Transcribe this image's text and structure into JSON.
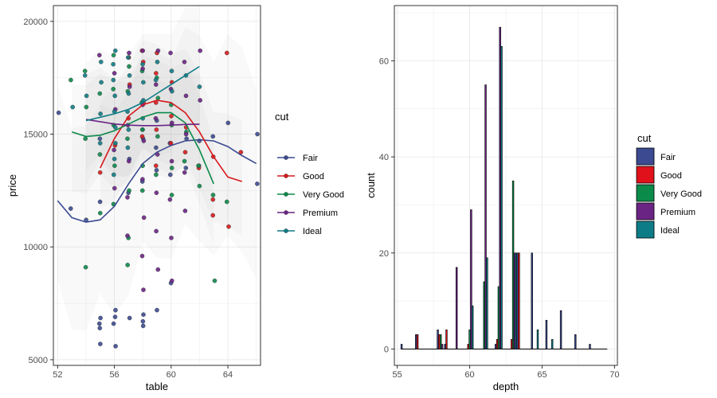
{
  "chart_data": [
    {
      "type": "scatter",
      "title": "",
      "xlabel": "table",
      "ylabel": "price",
      "xlim": [
        51.7,
        66.3
      ],
      "ylim": [
        4750,
        20700
      ],
      "xticks": [
        52,
        56,
        60,
        64
      ],
      "yticks": [
        5000,
        10000,
        15000,
        20000
      ],
      "grid": true,
      "legend": {
        "title": "cut",
        "position": "right"
      },
      "series": [
        {
          "name": "Fair",
          "color": "#3b4a91",
          "points": [
            [
              52,
              15950
            ],
            [
              53,
              11700
            ],
            [
              54,
              11200
            ],
            [
              55,
              14800
            ],
            [
              55,
              12000
            ],
            [
              55,
              6850
            ],
            [
              55,
              6600
            ],
            [
              55,
              6400
            ],
            [
              55,
              5700
            ],
            [
              56,
              7200
            ],
            [
              56,
              6900
            ],
            [
              56,
              6600
            ],
            [
              56,
              5600
            ],
            [
              57,
              13900
            ],
            [
              57,
              12400
            ],
            [
              57,
              6850
            ],
            [
              58,
              15200
            ],
            [
              58,
              14800
            ],
            [
              58,
              12900
            ],
            [
              58,
              7000
            ],
            [
              58,
              6700
            ],
            [
              58,
              6500
            ],
            [
              59,
              15600
            ],
            [
              59,
              14400
            ],
            [
              59,
              13400
            ],
            [
              59,
              7200
            ],
            [
              60,
              14600
            ],
            [
              60,
              13200
            ],
            [
              60,
              8400
            ],
            [
              61,
              14800
            ],
            [
              61,
              13500
            ],
            [
              62,
              13600
            ],
            [
              62,
              14700
            ],
            [
              63,
              14900
            ],
            [
              64,
              15500
            ],
            [
              66,
              15000
            ],
            [
              66,
              12800
            ]
          ],
          "smooth": [
            [
              52,
              12050
            ],
            [
              53,
              11300
            ],
            [
              54,
              11100
            ],
            [
              55,
              11200
            ],
            [
              56,
              11800
            ],
            [
              57,
              12800
            ],
            [
              58,
              13700
            ],
            [
              59,
              14200
            ],
            [
              60,
              14500
            ],
            [
              61,
              14700
            ],
            [
              62,
              14750
            ],
            [
              63,
              14700
            ],
            [
              64,
              14450
            ],
            [
              65,
              14050
            ],
            [
              66,
              13700
            ]
          ]
        },
        {
          "name": "Good",
          "color": "#d7191c",
          "points": [
            [
              55,
              13300
            ],
            [
              56,
              14500
            ],
            [
              57,
              18400
            ],
            [
              57,
              17200
            ],
            [
              57,
              15700
            ],
            [
              58,
              18700
            ],
            [
              58,
              18200
            ],
            [
              58,
              16400
            ],
            [
              58,
              14900
            ],
            [
              59,
              18600
            ],
            [
              59,
              17700
            ],
            [
              59,
              16400
            ],
            [
              59,
              15200
            ],
            [
              59,
              13600
            ],
            [
              60,
              17300
            ],
            [
              60,
              15800
            ],
            [
              60,
              14600
            ],
            [
              61,
              15300
            ],
            [
              61,
              14200
            ],
            [
              62,
              13500
            ],
            [
              63,
              14000
            ],
            [
              63,
              12100
            ],
            [
              63,
              11400
            ],
            [
              64,
              18600
            ],
            [
              64,
              10900
            ],
            [
              65,
              14200
            ]
          ],
          "smooth": [
            [
              55,
              13500
            ],
            [
              56,
              14800
            ],
            [
              57,
              15800
            ],
            [
              58,
              16300
            ],
            [
              59,
              16500
            ],
            [
              60,
              16400
            ],
            [
              61,
              15950
            ],
            [
              62,
              15100
            ],
            [
              63,
              14000
            ],
            [
              64,
              13100
            ],
            [
              65,
              12900
            ]
          ]
        },
        {
          "name": "Very Good",
          "color": "#0b8a4a",
          "points": [
            [
              53,
              17400
            ],
            [
              54,
              17800
            ],
            [
              54,
              16200
            ],
            [
              54,
              14800
            ],
            [
              54,
              9100
            ],
            [
              55,
              16800
            ],
            [
              55,
              14100
            ],
            [
              55,
              11500
            ],
            [
              56,
              18500
            ],
            [
              56,
              17000
            ],
            [
              56,
              15400
            ],
            [
              56,
              13600
            ],
            [
              56,
              11900
            ],
            [
              57,
              18000
            ],
            [
              57,
              16900
            ],
            [
              57,
              14800
            ],
            [
              57,
              12500
            ],
            [
              57,
              10400
            ],
            [
              57,
              9200
            ],
            [
              58,
              17800
            ],
            [
              58,
              16400
            ],
            [
              58,
              15200
            ],
            [
              58,
              13600
            ],
            [
              58,
              12500
            ],
            [
              59,
              17500
            ],
            [
              59,
              16600
            ],
            [
              59,
              14900
            ],
            [
              59,
              13200
            ],
            [
              60,
              16300
            ],
            [
              60,
              15400
            ],
            [
              60,
              13500
            ],
            [
              60,
              12300
            ],
            [
              61,
              15100
            ],
            [
              61,
              13800
            ],
            [
              62,
              13600
            ],
            [
              62,
              12700
            ],
            [
              63,
              12300
            ],
            [
              63,
              8500
            ],
            [
              64,
              12000
            ]
          ],
          "smooth": [
            [
              53,
              15100
            ],
            [
              54,
              14900
            ],
            [
              55,
              14950
            ],
            [
              56,
              15150
            ],
            [
              57,
              15450
            ],
            [
              58,
              15750
            ],
            [
              59,
              15950
            ],
            [
              60,
              15950
            ],
            [
              61,
              15500
            ],
            [
              62,
              14300
            ],
            [
              63,
              12800
            ]
          ]
        },
        {
          "name": "Premium",
          "color": "#6a2484",
          "points": [
            [
              55,
              18500
            ],
            [
              56,
              17700
            ],
            [
              56,
              16100
            ],
            [
              56,
              14300
            ],
            [
              56,
              12600
            ],
            [
              57,
              18600
            ],
            [
              57,
              17100
            ],
            [
              57,
              15400
            ],
            [
              57,
              13800
            ],
            [
              57,
              12200
            ],
            [
              57,
              10500
            ],
            [
              58,
              18700
            ],
            [
              58,
              17900
            ],
            [
              58,
              16300
            ],
            [
              58,
              14700
            ],
            [
              58,
              13000
            ],
            [
              58,
              11300
            ],
            [
              58,
              9600
            ],
            [
              58,
              8100
            ],
            [
              59,
              18700
            ],
            [
              59,
              17200
            ],
            [
              59,
              15700
            ],
            [
              59,
              14100
            ],
            [
              59,
              12400
            ],
            [
              59,
              10700
            ],
            [
              59,
              9000
            ],
            [
              60,
              18600
            ],
            [
              60,
              17000
            ],
            [
              60,
              15500
            ],
            [
              60,
              13800
            ],
            [
              60,
              12100
            ],
            [
              60,
              10400
            ],
            [
              60,
              8500
            ],
            [
              61,
              18200
            ],
            [
              61,
              16700
            ],
            [
              61,
              15000
            ],
            [
              61,
              13300
            ],
            [
              61,
              11600
            ],
            [
              62,
              18700
            ],
            [
              62,
              16500
            ]
          ],
          "smooth": [
            [
              54,
              15650
            ],
            [
              55,
              15550
            ],
            [
              56,
              15450
            ],
            [
              57,
              15400
            ],
            [
              58,
              15380
            ],
            [
              59,
              15380
            ],
            [
              60,
              15400
            ],
            [
              61,
              15430
            ],
            [
              62,
              15440
            ]
          ]
        },
        {
          "name": "Ideal",
          "color": "#0e7c86",
          "points": [
            [
              53,
              16200
            ],
            [
              54,
              17600
            ],
            [
              54,
              16700
            ],
            [
              55,
              18200
            ],
            [
              55,
              17300
            ],
            [
              55,
              15900
            ],
            [
              55,
              14600
            ],
            [
              56,
              18700
            ],
            [
              56,
              18100
            ],
            [
              56,
              17400
            ],
            [
              56,
              16700
            ],
            [
              56,
              16000
            ],
            [
              56,
              15300
            ],
            [
              56,
              14600
            ],
            [
              56,
              13900
            ],
            [
              56,
              13200
            ],
            [
              57,
              18400
            ],
            [
              57,
              17600
            ],
            [
              57,
              16800
            ],
            [
              57,
              16000
            ],
            [
              57,
              15200
            ],
            [
              57,
              14400
            ],
            [
              58,
              18100
            ],
            [
              58,
              17300
            ],
            [
              58,
              16500
            ],
            [
              58,
              15700
            ],
            [
              59,
              18200
            ],
            [
              59,
              17400
            ],
            [
              60,
              17800
            ],
            [
              60,
              16900
            ],
            [
              61,
              17600
            ],
            [
              62,
              17100
            ]
          ],
          "smooth": [
            [
              54,
              15600
            ],
            [
              55,
              15750
            ],
            [
              56,
              15900
            ],
            [
              57,
              16100
            ],
            [
              58,
              16400
            ],
            [
              59,
              16800
            ],
            [
              60,
              17200
            ],
            [
              61,
              17600
            ],
            [
              62,
              18000
            ]
          ]
        }
      ]
    },
    {
      "type": "bar",
      "title": "",
      "xlabel": "depth",
      "ylabel": "count",
      "xlim": [
        54.8,
        70.2
      ],
      "ylim": [
        -3.4,
        71.5
      ],
      "xticks": [
        55,
        60,
        65,
        70
      ],
      "yticks": [
        0,
        20,
        40,
        60
      ],
      "grid": true,
      "position": "dodge",
      "legend": {
        "title": "cut",
        "position": "right"
      },
      "series_names": [
        "Fair",
        "Good",
        "Very Good",
        "Premium",
        "Ideal"
      ],
      "colors": [
        "#3b4a91",
        "#e0111b",
        "#0b8a4a",
        "#6a2484",
        "#0e7c86"
      ],
      "bins": [
        {
          "x": 55.5,
          "counts": [
            1,
            0,
            0,
            0,
            0
          ]
        },
        {
          "x": 56.5,
          "counts": [
            3,
            3,
            0,
            0,
            0
          ]
        },
        {
          "x": 58.0,
          "counts": [
            4,
            3,
            3,
            1,
            0
          ]
        },
        {
          "x": 58.5,
          "counts": [
            1,
            4,
            0,
            0,
            0
          ]
        },
        {
          "x": 59.0,
          "counts": [
            0,
            0,
            0,
            17,
            0
          ]
        },
        {
          "x": 60.0,
          "counts": [
            0,
            1,
            4,
            29,
            9
          ]
        },
        {
          "x": 61.0,
          "counts": [
            0,
            0,
            14,
            55,
            19
          ]
        },
        {
          "x": 62.0,
          "counts": [
            1,
            2,
            13,
            67,
            63
          ]
        },
        {
          "x": 63.0,
          "counts": [
            0,
            2,
            35,
            20,
            20
          ]
        },
        {
          "x": 63.5,
          "counts": [
            20,
            20,
            0,
            0,
            0
          ]
        },
        {
          "x": 64.5,
          "counts": [
            20,
            0,
            0,
            0,
            4
          ]
        },
        {
          "x": 65.5,
          "counts": [
            6,
            0,
            0,
            0,
            2
          ]
        },
        {
          "x": 66.5,
          "counts": [
            8,
            0,
            0,
            0,
            0
          ]
        },
        {
          "x": 67.5,
          "counts": [
            3,
            0,
            0,
            0,
            0
          ]
        },
        {
          "x": 68.5,
          "counts": [
            1,
            0,
            0,
            0,
            0
          ]
        }
      ]
    }
  ]
}
